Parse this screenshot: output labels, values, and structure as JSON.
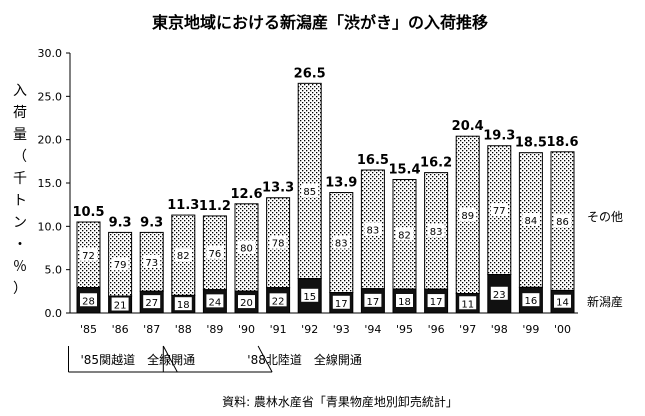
{
  "chart_data": {
    "type": "bar",
    "stacked": true,
    "title": "東京地域における新潟産「渋がき」の入荷推移",
    "ylabel": "入荷量（千トン・％）",
    "ylim": [
      0,
      30
    ],
    "yticks": [
      "0.0",
      "5.0",
      "10.0",
      "15.0",
      "20.0",
      "25.0",
      "30.0"
    ],
    "grid": false,
    "categories": [
      "'85",
      "'86",
      "'87",
      "'88",
      "'89",
      "'90",
      "'91",
      "'92",
      "'93",
      "'94",
      "'95",
      "'96",
      "'97",
      "'98",
      "'99",
      "'00"
    ],
    "totals": [
      10.5,
      9.3,
      9.3,
      11.3,
      11.2,
      12.6,
      13.3,
      26.5,
      13.9,
      16.5,
      15.4,
      16.2,
      20.4,
      19.3,
      18.5,
      18.6
    ],
    "totals_labels": [
      "10.5",
      "9.3",
      "9.3",
      "11.3",
      "11.2",
      "12.6",
      "13.3",
      "26.5",
      "13.9",
      "16.5",
      "15.4",
      "16.2",
      "20.4",
      "19.3",
      "18.5",
      "18.6"
    ],
    "series": [
      {
        "name": "新潟産",
        "share_percent": [
          28,
          21,
          27,
          18,
          24,
          20,
          22,
          15,
          17,
          17,
          18,
          17,
          11,
          23,
          16,
          14
        ],
        "color": "#000000"
      },
      {
        "name": "その他",
        "share_percent": [
          72,
          79,
          73,
          82,
          76,
          80,
          78,
          85,
          83,
          83,
          82,
          83,
          89,
          77,
          84,
          86
        ],
        "color": "#ffffff"
      }
    ],
    "annotations": [
      {
        "text": "'85関越道　全線開通",
        "from_category": "'85",
        "to_category": "'88"
      },
      {
        "text": "'88北陸道　全線開通",
        "from_category": "'88",
        "to_category": "'91"
      }
    ],
    "source": "資料: 農林水産省「青果物産地別卸売統計」"
  }
}
